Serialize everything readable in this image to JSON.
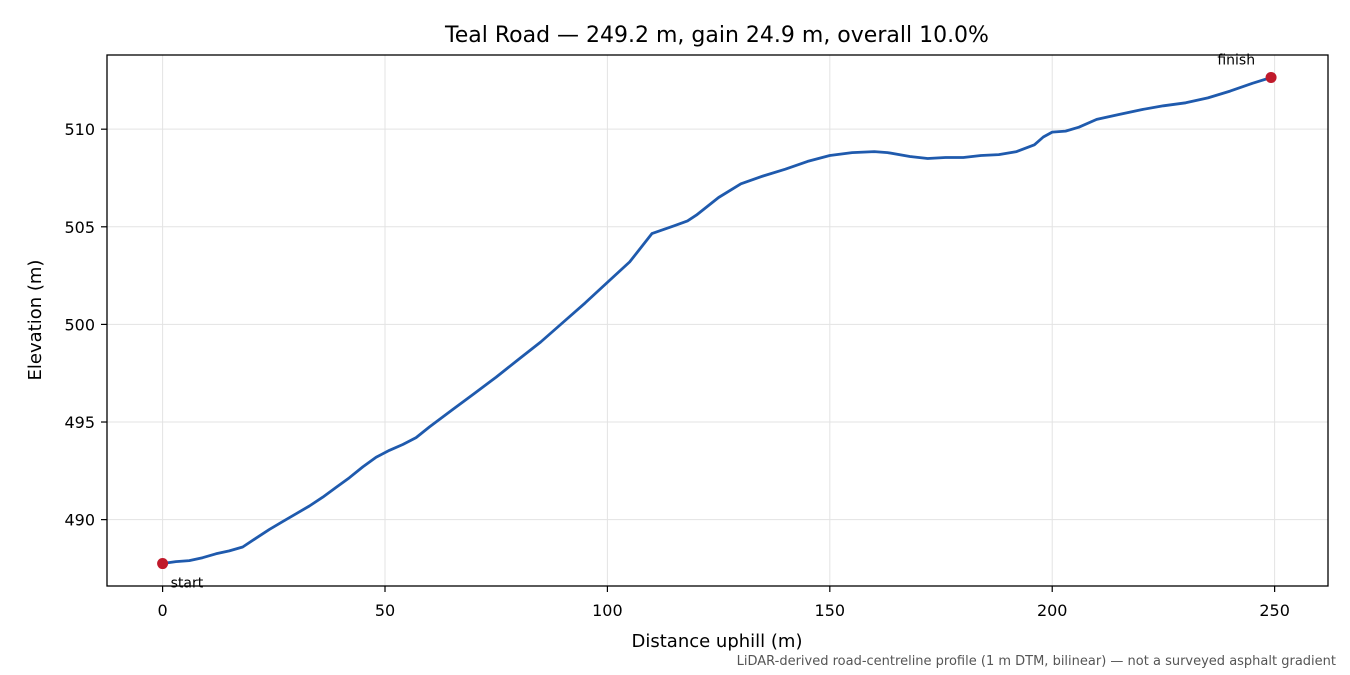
{
  "chart_data": {
    "type": "line",
    "title": "Teal Road — 249.2 m, gain 24.9 m, overall 10.0%",
    "xlabel": "Distance uphill (m)",
    "ylabel": "Elevation (m)",
    "footnote": "LiDAR-derived road-centreline profile (1 m DTM, bilinear) — not a surveyed asphalt gradient",
    "xlim": [
      -12.5,
      262
    ],
    "ylim": [
      486.6,
      513.8
    ],
    "xticks": [
      0,
      50,
      100,
      150,
      200,
      250
    ],
    "yticks": [
      490,
      495,
      500,
      505,
      510
    ],
    "grid": true,
    "series": [
      {
        "x": [
          0,
          3,
          6,
          9,
          12,
          15,
          18,
          21,
          24,
          27,
          30,
          33,
          36,
          39,
          42,
          45,
          48,
          51,
          54,
          57,
          60,
          65,
          70,
          75,
          80,
          85,
          90,
          95,
          100,
          105,
          110,
          115,
          118,
          120,
          125,
          130,
          135,
          140,
          145,
          150,
          155,
          160,
          163,
          168,
          172,
          176,
          180,
          184,
          188,
          192,
          196,
          198,
          200,
          203,
          206,
          210,
          215,
          220,
          225,
          230,
          235,
          240,
          245,
          249.2
        ],
        "y": [
          487.75,
          487.85,
          487.9,
          488.05,
          488.25,
          488.4,
          488.6,
          489.05,
          489.5,
          489.9,
          490.3,
          490.7,
          491.15,
          491.65,
          492.15,
          492.7,
          493.2,
          493.55,
          493.85,
          494.2,
          494.75,
          495.6,
          496.45,
          497.3,
          498.2,
          499.1,
          500.1,
          501.1,
          502.15,
          503.2,
          504.65,
          505.05,
          505.3,
          505.6,
          506.5,
          507.2,
          507.6,
          507.95,
          508.35,
          508.65,
          508.8,
          508.85,
          508.8,
          508.6,
          508.5,
          508.55,
          508.55,
          508.65,
          508.7,
          508.85,
          509.2,
          509.6,
          509.85,
          509.9,
          510.1,
          510.5,
          510.75,
          511.0,
          511.2,
          511.35,
          511.6,
          511.95,
          512.35,
          512.65
        ]
      }
    ],
    "annotations": [
      {
        "text": "start",
        "x": 0,
        "y": 487.75
      },
      {
        "text": "finish",
        "x": 249.2,
        "y": 512.65
      }
    ],
    "colors": {
      "line": "#1f5aad",
      "marker": "#c01a2b",
      "grid": "#e3e3e3"
    }
  }
}
